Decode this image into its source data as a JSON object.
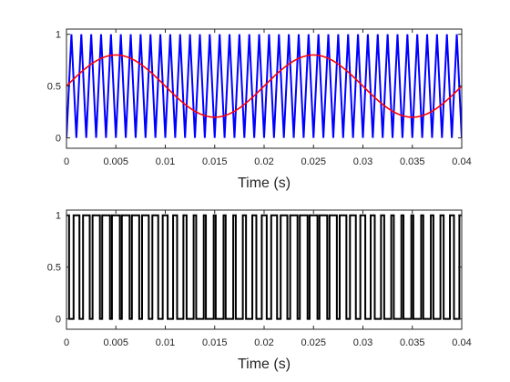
{
  "chart_data": [
    {
      "type": "line",
      "xlabel": "Time (s)",
      "ylabel": "",
      "xlim": [
        0,
        0.04
      ],
      "ylim": [
        -0.1,
        1.05
      ],
      "xticks": [
        0,
        0.005,
        0.01,
        0.015,
        0.02,
        0.025,
        0.03,
        0.035,
        0.04
      ],
      "xtick_labels": [
        "0",
        "0.005",
        "0.01",
        "0.015",
        "0.02",
        "0.025",
        "0.03",
        "0.035",
        "0.04"
      ],
      "yticks": [
        0,
        0.5,
        1
      ],
      "ytick_labels": [
        "0",
        "0.5",
        "1"
      ],
      "grid": false,
      "series": [
        {
          "kind": "triangle carrier",
          "color": "#0000ff",
          "frequency_hz": 1000,
          "min": 0,
          "max": 1
        },
        {
          "kind": "sine reference",
          "color": "#ff0000",
          "frequency_hz": 50,
          "offset": 0.5,
          "amplitude": 0.3
        }
      ]
    },
    {
      "type": "line",
      "xlabel": "Time (s)",
      "ylabel": "",
      "xlim": [
        0,
        0.04
      ],
      "ylim": [
        -0.1,
        1.05
      ],
      "xticks": [
        0,
        0.005,
        0.01,
        0.015,
        0.02,
        0.025,
        0.03,
        0.035,
        0.04
      ],
      "xtick_labels": [
        "0",
        "0.005",
        "0.01",
        "0.015",
        "0.02",
        "0.025",
        "0.03",
        "0.035",
        "0.04"
      ],
      "yticks": [
        0,
        0.5,
        1
      ],
      "ytick_labels": [
        "0",
        "0.5",
        "1"
      ],
      "grid": false,
      "series": [
        {
          "kind": "PWM output (sine reference > triangle carrier)",
          "color": "#000000",
          "low": 0,
          "high": 1
        }
      ]
    }
  ]
}
